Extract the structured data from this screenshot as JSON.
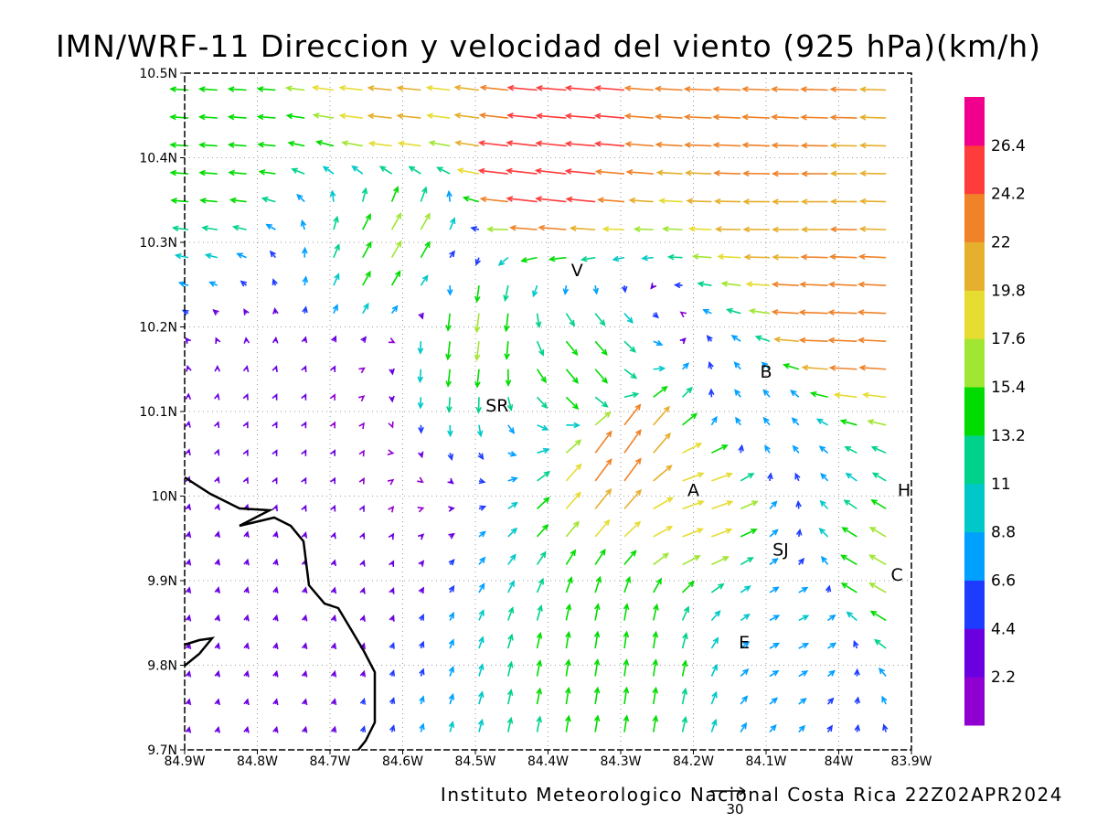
{
  "title": "IMN/WRF-11 Direccion y velocidad del viento (925 hPa)(km/h)",
  "credit": "Instituto Meteorologico Nacional Costa Rica 22Z02APR2024",
  "reference_vector": {
    "label": "30",
    "speed": 30
  },
  "map": {
    "lon_range": [
      -84.9,
      -83.9
    ],
    "lat_range": [
      9.7,
      10.5
    ],
    "grid": true,
    "lon_ticks": [
      {
        "value": -84.9,
        "label": "84.9W"
      },
      {
        "value": -84.8,
        "label": "84.8W"
      },
      {
        "value": -84.7,
        "label": "84.7W"
      },
      {
        "value": -84.6,
        "label": "84.6W"
      },
      {
        "value": -84.5,
        "label": "84.5W"
      },
      {
        "value": -84.4,
        "label": "84.4W"
      },
      {
        "value": -84.3,
        "label": "84.3W"
      },
      {
        "value": -84.2,
        "label": "84.2W"
      },
      {
        "value": -84.1,
        "label": "84.1W"
      },
      {
        "value": -84.0,
        "label": "84W"
      },
      {
        "value": -83.9,
        "label": "83.9W"
      }
    ],
    "lat_ticks": [
      {
        "value": 9.7,
        "label": "9.7N"
      },
      {
        "value": 9.8,
        "label": "9.8N"
      },
      {
        "value": 9.9,
        "label": "9.9N"
      },
      {
        "value": 10.0,
        "label": "10N"
      },
      {
        "value": 10.1,
        "label": "10.1N"
      },
      {
        "value": 10.2,
        "label": "10.2N"
      },
      {
        "value": 10.3,
        "label": "10.3N"
      },
      {
        "value": 10.4,
        "label": "10.4N"
      },
      {
        "value": 10.5,
        "label": "10.5N"
      }
    ],
    "cities": [
      {
        "label": "V",
        "lon": -84.36,
        "lat": 10.26
      },
      {
        "label": "SR",
        "lon": -84.47,
        "lat": 10.1
      },
      {
        "label": "B",
        "lon": -84.1,
        "lat": 10.14
      },
      {
        "label": "A",
        "lon": -84.2,
        "lat": 10.0
      },
      {
        "label": "SJ",
        "lon": -84.08,
        "lat": 9.93
      },
      {
        "label": "C",
        "lon": -83.92,
        "lat": 9.9
      },
      {
        "label": "E",
        "lon": -84.13,
        "lat": 9.82
      },
      {
        "label": "H",
        "lon": -83.91,
        "lat": 10.0
      }
    ]
  },
  "colorbar": {
    "colors": [
      "#9000d0",
      "#6a00e0",
      "#1e3cff",
      "#00a0ff",
      "#00c8c8",
      "#00d28c",
      "#00dc00",
      "#a0e632",
      "#e6dc32",
      "#e6af2d",
      "#f08228",
      "#ff3c3c",
      "#f0008c"
    ],
    "labels": [
      "2.2",
      "4.4",
      "6.6",
      "8.8",
      "11",
      "13.2",
      "15.4",
      "17.6",
      "19.8",
      "22",
      "24.2",
      "26.4"
    ]
  },
  "chart_data": {
    "type": "vector-field",
    "title": "IMN/WRF-11 Direccion y velocidad del viento (925 hPa)(km/h)",
    "variable": "wind direction and speed at 925 hPa",
    "units": "km/h",
    "xlim": [
      -84.9,
      -83.9
    ],
    "ylim": [
      9.7,
      10.5
    ],
    "color_levels": [
      2.2,
      4.4,
      6.6,
      8.8,
      11,
      13.2,
      15.4,
      17.6,
      19.8,
      22,
      24.2,
      26.4
    ],
    "reference_speed": 30,
    "vectors": [
      {
        "lon": -84.85,
        "lat": 10.45,
        "u": -15,
        "v": 1
      },
      {
        "lon": -84.6,
        "lat": 10.45,
        "u": -20,
        "v": 2
      },
      {
        "lon": -84.35,
        "lat": 10.45,
        "u": -25,
        "v": 2
      },
      {
        "lon": -84.1,
        "lat": 10.45,
        "u": -23,
        "v": 1
      },
      {
        "lon": -84.4,
        "lat": 10.38,
        "u": -26,
        "v": 3
      },
      {
        "lon": -84.05,
        "lat": 10.35,
        "u": -22,
        "v": 0
      },
      {
        "lon": -84.0,
        "lat": 10.2,
        "u": -24,
        "v": 1
      },
      {
        "lon": -84.5,
        "lat": 10.2,
        "u": -2,
        "v": -16
      },
      {
        "lon": -84.35,
        "lat": 10.15,
        "u": 10,
        "v": -12
      },
      {
        "lon": -84.3,
        "lat": 10.05,
        "u": 14,
        "v": 20
      },
      {
        "lon": -84.2,
        "lat": 10.0,
        "u": 18,
        "v": 6
      },
      {
        "lon": -84.8,
        "lat": 9.9,
        "u": 1,
        "v": 4
      },
      {
        "lon": -84.75,
        "lat": 10.05,
        "u": 1,
        "v": 2
      },
      {
        "lon": -84.6,
        "lat": 10.3,
        "u": 8,
        "v": 14
      },
      {
        "lon": -84.3,
        "lat": 9.8,
        "u": 2,
        "v": 14
      },
      {
        "lon": -84.05,
        "lat": 9.85,
        "u": 8,
        "v": 4
      },
      {
        "lon": -83.95,
        "lat": 9.9,
        "u": -14,
        "v": 8
      },
      {
        "lon": -84.1,
        "lat": 10.1,
        "u": -5,
        "v": 6
      }
    ]
  }
}
